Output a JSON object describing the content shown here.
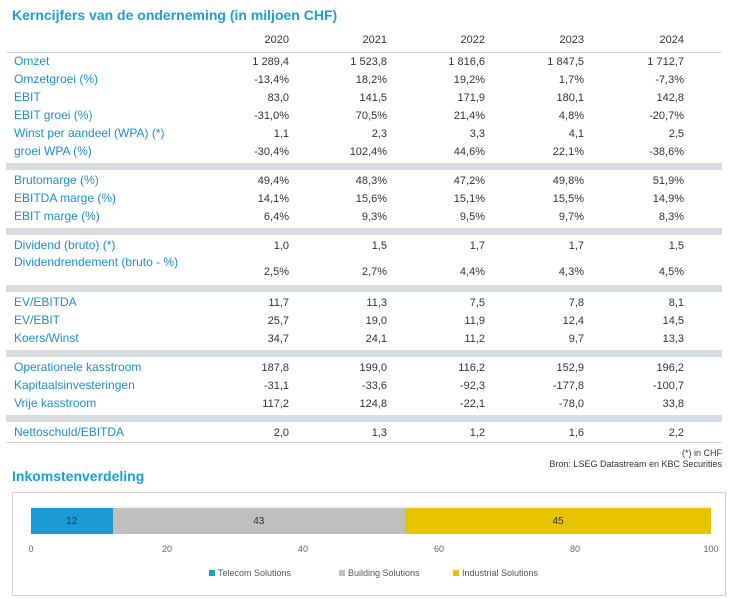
{
  "title": "Kerncijfers van de onderneming (in miljoen CHF)",
  "years": [
    "2020",
    "2021",
    "2022",
    "2023",
    "2024"
  ],
  "groups": [
    [
      {
        "label": "Omzet",
        "values": [
          "1 289,4",
          "1 523,8",
          "1 816,6",
          "1 847,5",
          "1 712,7"
        ]
      },
      {
        "label": "Omzetgroei (%)",
        "values": [
          "-13,4%",
          "18,2%",
          "19,2%",
          "1,7%",
          "-7,3%"
        ]
      },
      {
        "label": "EBIT",
        "values": [
          "83,0",
          "141,5",
          "171,9",
          "180,1",
          "142,8"
        ]
      },
      {
        "label": "EBIT groei (%)",
        "values": [
          "-31,0%",
          "70,5%",
          "21,4%",
          "4,8%",
          "-20,7%"
        ]
      },
      {
        "label": "Winst per aandeel (WPA) (*)",
        "values": [
          "1,1",
          "2,3",
          "3,3",
          "4,1",
          "2,5"
        ]
      },
      {
        "label": "groei WPA (%)",
        "values": [
          "-30,4%",
          "102,4%",
          "44,6%",
          "22,1%",
          "-38,6%"
        ]
      }
    ],
    [
      {
        "label": "Brutomarge (%)",
        "values": [
          "49,4%",
          "48,3%",
          "47,2%",
          "49,8%",
          "51,9%"
        ]
      },
      {
        "label": "EBITDA marge (%)",
        "values": [
          "14,1%",
          "15,6%",
          "15,1%",
          "15,5%",
          "14,9%"
        ]
      },
      {
        "label": "EBIT marge (%)",
        "values": [
          "6,4%",
          "9,3%",
          "9,5%",
          "9,7%",
          "8,3%"
        ]
      }
    ],
    [
      {
        "label": "Dividend (bruto) (*)",
        "values": [
          "1,0",
          "1,5",
          "1,7",
          "1,7",
          "1,5"
        ]
      },
      {
        "label": "Dividendrendement (bruto - %)",
        "values": [
          "2,5%",
          "2,7%",
          "4,4%",
          "4,3%",
          "4,5%"
        ],
        "tall": true
      }
    ],
    [
      {
        "label": "EV/EBITDA",
        "values": [
          "11,7",
          "11,3",
          "7,5",
          "7,8",
          "8,1"
        ]
      },
      {
        "label": "EV/EBIT",
        "values": [
          "25,7",
          "19,0",
          "11,9",
          "12,4",
          "14,5"
        ]
      },
      {
        "label": "Koers/Winst",
        "values": [
          "34,7",
          "24,1",
          "11,2",
          "9,7",
          "13,3"
        ]
      }
    ],
    [
      {
        "label": "Operationele kasstroom",
        "values": [
          "187,8",
          "199,0",
          "116,2",
          "152,9",
          "196,2"
        ]
      },
      {
        "label": "Kapitaalsinvesteringen",
        "values": [
          "-31,1",
          "-33,6",
          "-92,3",
          "-177,8",
          "-100,7"
        ]
      },
      {
        "label": "Vrije kasstroom",
        "values": [
          "117,2",
          "124,8",
          "-22,1",
          "-78,0",
          "33,8"
        ]
      }
    ],
    [
      {
        "label": "Nettoschuld/EBITDA",
        "values": [
          "2,0",
          "1,3",
          "1,2",
          "1,6",
          "2,2"
        ]
      }
    ]
  ],
  "notes": {
    "footnote": "(*) in CHF",
    "source": "Bron: LSEG Datastream en KBC Securities"
  },
  "income_title": "Inkomstenverdeling",
  "colors": {
    "accent": "#1aa0d8",
    "telecom": "#1b9ad6",
    "building": "#bfbfbf",
    "industrial": "#e8c300"
  },
  "chart_data": {
    "type": "bar",
    "orientation": "horizontal-stacked",
    "series": [
      {
        "name": "Telecom Solutions",
        "values": [
          12
        ]
      },
      {
        "name": "Building Solutions",
        "values": [
          43
        ]
      },
      {
        "name": "Industrial Solutions",
        "values": [
          45
        ]
      }
    ],
    "xlim": [
      0,
      100
    ],
    "xticks": [
      "0",
      "20",
      "40",
      "60",
      "80",
      "100"
    ],
    "legend": "bottom"
  }
}
